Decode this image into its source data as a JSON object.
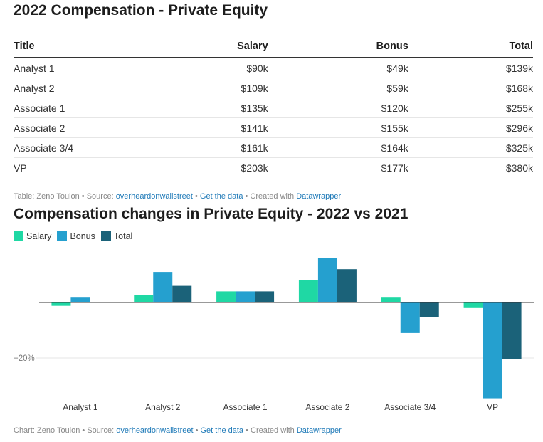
{
  "table": {
    "title": "2022 Compensation - Private Equity",
    "headers": [
      "Title",
      "Salary",
      "Bonus",
      "Total"
    ],
    "rows": [
      [
        "Analyst 1",
        "$90k",
        "$49k",
        "$139k"
      ],
      [
        "Analyst 2",
        "$109k",
        "$59k",
        "$168k"
      ],
      [
        "Associate 1",
        "$135k",
        "$120k",
        "$255k"
      ],
      [
        "Associate 2",
        "$141k",
        "$155k",
        "$296k"
      ],
      [
        "Associate 3/4",
        "$161k",
        "$164k",
        "$325k"
      ],
      [
        "VP",
        "$203k",
        "$177k",
        "$380k"
      ]
    ],
    "footnote": {
      "prefix": "Table: Zeno Toulon • Source: ",
      "source": "overheardonwallstreet",
      "sep1": " • ",
      "get_data": "Get the data",
      "sep2": " • Created with ",
      "tool": "Datawrapper"
    }
  },
  "chart_data": {
    "type": "bar",
    "title": "Compensation changes in Private Equity - 2022 vs 2021",
    "categories": [
      "Analyst 1",
      "Analyst 2",
      "Associate 1",
      "Associate 2",
      "Associate 3/4",
      "VP"
    ],
    "series": [
      {
        "name": "Salary",
        "color": "#1fd8a4",
        "values": [
          -1.2,
          2.8,
          4.0,
          8.0,
          2.0,
          -2.0
        ]
      },
      {
        "name": "Bonus",
        "color": "#25a0cf",
        "values": [
          2.0,
          11.0,
          4.0,
          16.0,
          -11.0,
          -34.5
        ]
      },
      {
        "name": "Total",
        "color": "#1b6279",
        "values": [
          0,
          6.0,
          4.0,
          12.0,
          -5.3,
          -20.3
        ]
      }
    ],
    "ylim": [
      -35,
      17
    ],
    "yticks": [
      {
        "value": -20,
        "label": "−20%"
      }
    ],
    "legend_position": "top-left",
    "grid": true,
    "footnote": {
      "prefix": "Chart: Zeno Toulon • Source: ",
      "source": "overheardonwallstreet",
      "sep1": " • ",
      "get_data": "Get the data",
      "sep2": " • Created with ",
      "tool": "Datawrapper"
    }
  }
}
